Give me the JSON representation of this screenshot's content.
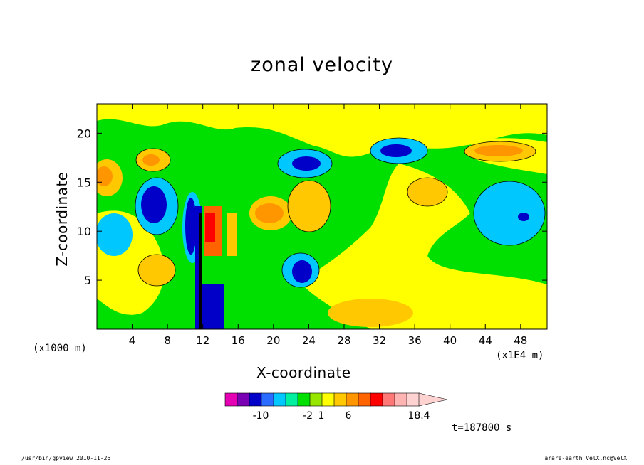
{
  "chart_data": {
    "type": "heatmap",
    "title": "zonal velocity",
    "xlabel": "X-coordinate",
    "ylabel": "Z-coordinate",
    "x_multiplier_label": "(x1E4 m)",
    "y_multiplier_label": "(x1000 m)",
    "xlim": [
      0,
      51
    ],
    "ylim": [
      0,
      23
    ],
    "x_ticks": [
      4,
      8,
      12,
      16,
      20,
      24,
      28,
      32,
      36,
      40,
      44,
      48
    ],
    "y_ticks": [
      5,
      10,
      15,
      20
    ],
    "colorbar": {
      "colors": [
        "#e600b4",
        "#7a00b4",
        "#0000c8",
        "#2a6cff",
        "#00c8ff",
        "#00f0a0",
        "#00e000",
        "#96e600",
        "#ffff00",
        "#ffc800",
        "#ff9600",
        "#ff6400",
        "#ff0000",
        "#ff7878",
        "#ffb4b4",
        "#ffd2d2"
      ],
      "labels": [
        "-10",
        "-2",
        "1",
        "6",
        "18.4"
      ]
    },
    "field_description": "contour field of zonal velocity"
  },
  "time_label": "t=187800 s",
  "footer": {
    "left": "/usr/bin/gpview   2010-11-26",
    "right": "arare-earth_VelX.nc@VelX"
  }
}
